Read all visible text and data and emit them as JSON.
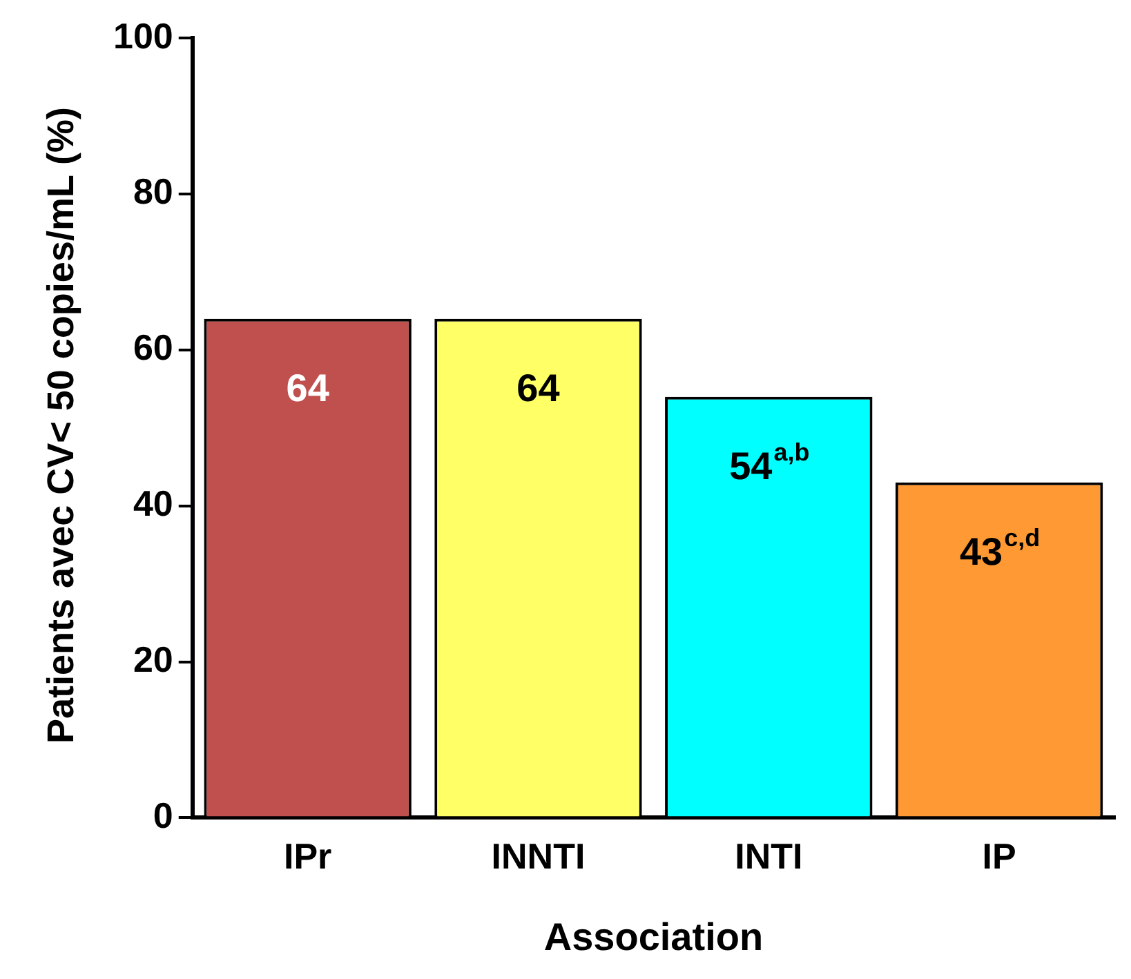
{
  "chart_data": {
    "type": "bar",
    "xlabel": "Association",
    "ylabel": "Patients avec CV< 50 copies/mL (%)",
    "categories": [
      "IPr",
      "INNTI",
      "INTI",
      "IP"
    ],
    "values": [
      64,
      64,
      54,
      43
    ],
    "value_labels": [
      "64",
      "64",
      "54$^{a,b}$",
      "43$^{c,d}$"
    ],
    "colors": [
      "#c0504d",
      "#ffff66",
      "#00ffff",
      "#ff9933"
    ],
    "ylim": [
      0,
      100
    ],
    "yticks": [
      0,
      20,
      40,
      60,
      80,
      100
    ],
    "grid": false,
    "legend": false
  }
}
